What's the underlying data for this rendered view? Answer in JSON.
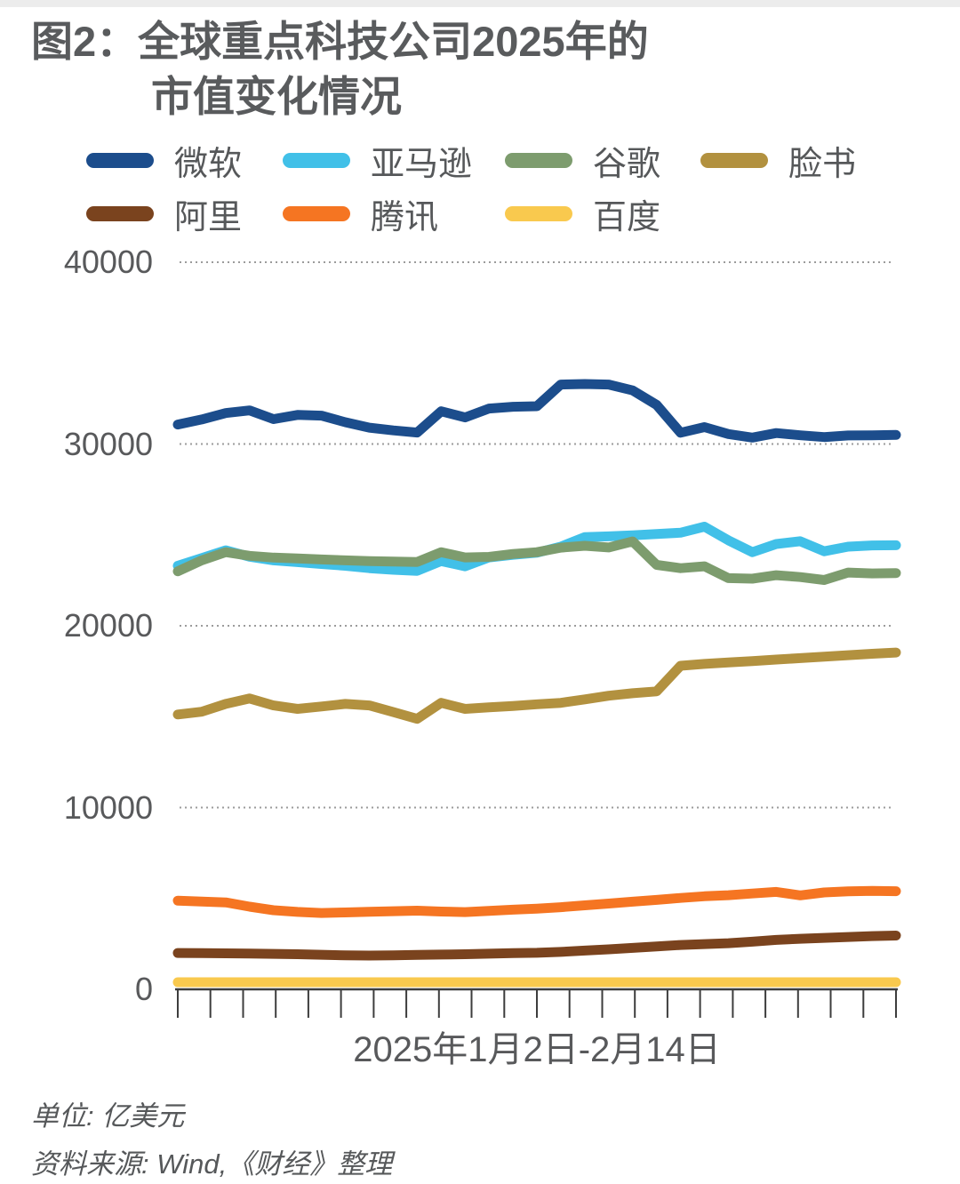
{
  "title": {
    "line1": "图2：全球重点科技公司2025年的",
    "line2": "市值变化情况"
  },
  "legend": [
    {
      "label": "微软",
      "color": "#1c4d8c"
    },
    {
      "label": "亚马逊",
      "color": "#41c0e8"
    },
    {
      "label": "谷歌",
      "color": "#7d9c6e"
    },
    {
      "label": "脸书",
      "color": "#b2913f"
    },
    {
      "label": "阿里",
      "color": "#7a431e"
    },
    {
      "label": "腾讯",
      "color": "#f57522"
    },
    {
      "label": "百度",
      "color": "#f9c94e"
    }
  ],
  "axis": {
    "y_ticks": [
      "40000",
      "30000",
      "20000",
      "10000",
      "0"
    ],
    "x_label": "2025年1月2日-2月14日"
  },
  "footer": {
    "unit": "单位: 亿美元",
    "source": "资料来源: Wind,《财经》整理"
  },
  "chart_data": {
    "type": "line",
    "title": "图2：全球重点科技公司2025年的市值变化情况",
    "x_range_label": "2025年1月2日-2月14日",
    "unit": "亿美元",
    "ylim": [
      0,
      40000
    ],
    "y_gridlines": [
      10000,
      20000,
      30000,
      40000
    ],
    "x_tick_count": 23,
    "grid_color": "#9b9b9b",
    "axis_color": "#3d3d3d",
    "n_points": 31,
    "series": [
      {
        "name": "百度",
        "color": "#f9c94e",
        "values": [
          390,
          390,
          390,
          390,
          390,
          390,
          390,
          390,
          390,
          390,
          390,
          390,
          390,
          390,
          390,
          390,
          390,
          390,
          390,
          390,
          390,
          390,
          390,
          390,
          390,
          390,
          390,
          390,
          390,
          390,
          390
        ]
      },
      {
        "name": "阿里",
        "color": "#7a431e",
        "values": [
          2000,
          1990,
          1980,
          1970,
          1950,
          1930,
          1900,
          1870,
          1860,
          1870,
          1890,
          1910,
          1930,
          1960,
          1990,
          2010,
          2060,
          2130,
          2200,
          2280,
          2360,
          2440,
          2490,
          2540,
          2620,
          2720,
          2780,
          2830,
          2880,
          2930,
          2960
        ]
      },
      {
        "name": "腾讯",
        "color": "#f57522",
        "values": [
          4880,
          4830,
          4780,
          4550,
          4350,
          4260,
          4200,
          4230,
          4270,
          4300,
          4330,
          4280,
          4250,
          4320,
          4380,
          4440,
          4520,
          4620,
          4720,
          4820,
          4920,
          5025,
          5120,
          5180,
          5270,
          5360,
          5170,
          5330,
          5390,
          5415,
          5400
        ]
      },
      {
        "name": "脸书",
        "color": "#b2913f",
        "values": [
          15120,
          15270,
          15700,
          16000,
          15620,
          15430,
          15560,
          15700,
          15620,
          15250,
          14880,
          15760,
          15430,
          15510,
          15590,
          15680,
          15760,
          15950,
          16150,
          16290,
          16390,
          17800,
          17900,
          17980,
          18060,
          18140,
          18220,
          18300,
          18380,
          18460,
          18530
        ]
      },
      {
        "name": "亚马逊",
        "color": "#41c0e8",
        "values": [
          23300,
          23720,
          24150,
          23800,
          23600,
          23500,
          23400,
          23300,
          23170,
          23080,
          23020,
          23560,
          23270,
          23760,
          23900,
          24020,
          24350,
          24880,
          24920,
          24980,
          25050,
          25120,
          25450,
          24700,
          24050,
          24500,
          24650,
          24100,
          24350,
          24420,
          24430
        ]
      },
      {
        "name": "谷歌",
        "color": "#7d9c6e",
        "values": [
          23000,
          23600,
          24050,
          23850,
          23750,
          23700,
          23650,
          23600,
          23560,
          23530,
          23510,
          24050,
          23760,
          23790,
          23950,
          24050,
          24300,
          24400,
          24310,
          24640,
          23350,
          23170,
          23270,
          22620,
          22590,
          22780,
          22680,
          22520,
          22930,
          22880,
          22900
        ]
      },
      {
        "name": "微软",
        "color": "#1c4d8c",
        "values": [
          31070,
          31350,
          31700,
          31850,
          31370,
          31600,
          31560,
          31200,
          30900,
          30750,
          30630,
          31800,
          31460,
          31950,
          32050,
          32080,
          33270,
          33300,
          33270,
          32950,
          32150,
          30620,
          30930,
          30550,
          30350,
          30600,
          30480,
          30380,
          30470,
          30480,
          30500
        ]
      }
    ]
  }
}
